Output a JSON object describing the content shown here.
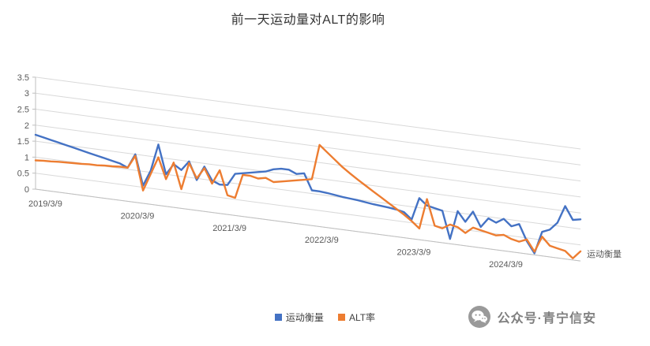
{
  "title": "前一天运动量对ALT的影响",
  "chart_data": {
    "type": "line",
    "projection": "3d-sheared",
    "title": "前一天运动量对ALT的影响",
    "x_tick_labels": [
      "2019/3/9",
      "2020/3/9",
      "2021/3/9",
      "2022/3/9",
      "2023/3/9",
      "2024/3/9"
    ],
    "x_tick_indices": [
      0,
      12,
      24,
      36,
      48,
      60
    ],
    "y_ticks": [
      0,
      0.5,
      1,
      1.5,
      2,
      2.5,
      3,
      3.5
    ],
    "ylim": [
      0,
      3.5
    ],
    "depth_axis_label": "运动衡量",
    "grid": true,
    "legend_position": "bottom",
    "series": [
      {
        "name": "运动衡量",
        "color": "#4472c4",
        "values": [
          1.7,
          1.65,
          1.6,
          1.55,
          1.5,
          1.45,
          1.4,
          1.35,
          1.3,
          1.25,
          1.2,
          1.15,
          1.05,
          1.5,
          0.55,
          1.05,
          1.9,
          1.0,
          1.35,
          1.2,
          1.5,
          0.95,
          1.4,
          1.0,
          0.9,
          0.92,
          1.3,
          1.35,
          1.4,
          1.45,
          1.5,
          1.6,
          1.65,
          1.65,
          1.55,
          1.6,
          1.1,
          1.1,
          1.08,
          1.05,
          1.02,
          1.0,
          0.98,
          0.95,
          0.92,
          0.9,
          0.88,
          0.85,
          0.8,
          0.6,
          1.3,
          1.1,
          1.05,
          1.0,
          0.15,
          1.05,
          0.75,
          1.1,
          0.65,
          0.95,
          0.85,
          1.0,
          0.8,
          0.9,
          0.4,
          0.05,
          0.75,
          0.85,
          1.1,
          1.65,
          1.25,
          1.3
        ]
      },
      {
        "name": "ALT率",
        "color": "#ed7d31",
        "values": [
          0.9,
          0.92,
          0.93,
          0.95,
          0.96,
          0.97,
          0.98,
          1.0,
          1.0,
          1.02,
          1.03,
          1.05,
          1.05,
          1.45,
          0.4,
          0.95,
          1.5,
          0.85,
          1.4,
          0.6,
          1.45,
          1.0,
          1.35,
          0.9,
          1.35,
          0.6,
          0.55,
          1.3,
          1.3,
          1.25,
          1.3,
          1.2,
          1.25,
          1.3,
          1.35,
          1.4,
          1.45,
          2.55,
          2.35,
          2.15,
          1.95,
          1.78,
          1.62,
          1.47,
          1.32,
          1.17,
          1.02,
          0.87,
          0.72,
          0.55,
          0.35,
          1.3,
          0.5,
          0.45,
          0.6,
          0.55,
          0.4,
          0.6,
          0.55,
          0.5,
          0.45,
          0.5,
          0.4,
          0.35,
          0.45,
          0.1,
          0.6,
          0.35,
          0.3,
          0.25,
          0.05,
          0.3
        ]
      }
    ]
  },
  "legend": {
    "items": [
      {
        "label": "运动衡量",
        "color": "#4472c4"
      },
      {
        "label": "ALT率",
        "color": "#ed7d31"
      }
    ]
  },
  "watermark": {
    "text": "公众号·青宁信安",
    "icon": "wechat-icon"
  },
  "colors": {
    "grid": "#d9d9d9",
    "axis": "#bfbfbf",
    "tick_text": "#595959",
    "title_text": "#333333",
    "watermark": "#7f7f7f"
  }
}
